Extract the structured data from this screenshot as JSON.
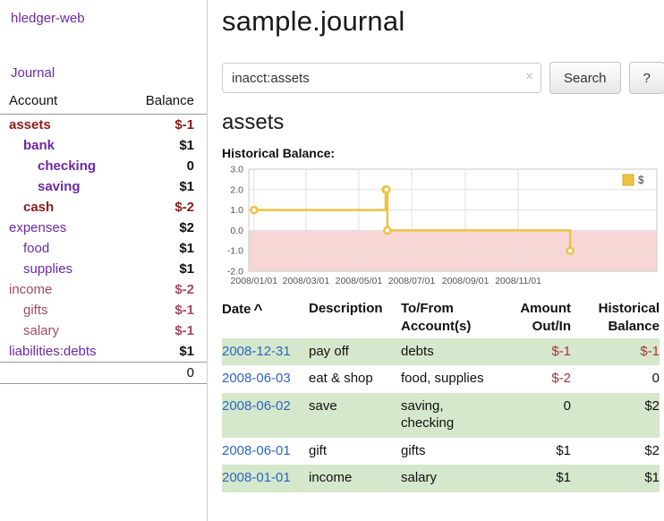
{
  "colors": {
    "link_purple": "#6d28a8",
    "link_blue": "#2b66c2",
    "negative_dark_red": "#8b1b1b",
    "negative_light_red": "#a34a5e",
    "negative_amount_red": "#a8323a",
    "row_stripe_green": "#d5e8cb",
    "chart_line_yellow": "#edc240",
    "chart_negative_fill_pink": "#f8d6d6"
  },
  "app": {
    "title": "hledger-web"
  },
  "sidebar": {
    "journal_link": "Journal",
    "accounts": {
      "col_account": "Account",
      "col_balance": "Balance",
      "rows": [
        {
          "name": "assets",
          "balance": "$-1",
          "depth": 1,
          "negative": true,
          "current": true
        },
        {
          "name": "bank",
          "balance": "$1",
          "depth": 2,
          "negative": false,
          "current": true
        },
        {
          "name": "checking",
          "balance": "0",
          "depth": 3,
          "negative": false,
          "current": true
        },
        {
          "name": "saving",
          "balance": "$1",
          "depth": 3,
          "negative": false,
          "current": true
        },
        {
          "name": "cash",
          "balance": "$-2",
          "depth": 2,
          "negative": true,
          "current": true
        },
        {
          "name": "expenses",
          "balance": "$2",
          "depth": 1,
          "negative": false,
          "current": false
        },
        {
          "name": "food",
          "balance": "$1",
          "depth": 2,
          "negative": false,
          "current": false
        },
        {
          "name": "supplies",
          "balance": "$1",
          "depth": 2,
          "negative": false,
          "current": false
        },
        {
          "name": "income",
          "balance": "$-2",
          "depth": 1,
          "negative": true,
          "current": false
        },
        {
          "name": "gifts",
          "balance": "$-1",
          "depth": 2,
          "negative": true,
          "current": false
        },
        {
          "name": "salary",
          "balance": "$-1",
          "depth": 2,
          "negative": true,
          "current": false
        },
        {
          "name": "liabilities:debts",
          "balance": "$1",
          "depth": 1,
          "negative": false,
          "current": false
        }
      ],
      "total": "0"
    }
  },
  "main": {
    "title": "sample.journal",
    "search": {
      "value": "inacct:assets",
      "clear_icon": "×",
      "button_label": "Search",
      "help_label": "?"
    },
    "account_heading": "assets",
    "chart_heading": "Historical Balance:",
    "register": {
      "sort_indicator": "^",
      "headers": {
        "date": "Date",
        "description": "Description",
        "tofrom": [
          "To/From",
          "Account(s)"
        ],
        "amount": [
          "Amount",
          "Out/In"
        ],
        "balance": [
          "Historical",
          "Balance"
        ]
      },
      "rows": [
        {
          "date": "2008-12-31",
          "description": "pay off",
          "accounts": "debts",
          "amount": "$-1",
          "balance": "$-1"
        },
        {
          "date": "2008-06-03",
          "description": "eat & shop",
          "accounts": "food, supplies",
          "amount": "$-2",
          "balance": "0"
        },
        {
          "date": "2008-06-02",
          "description": "save",
          "accounts": "saving, checking",
          "amount": "0",
          "balance": "$2"
        },
        {
          "date": "2008-06-01",
          "description": "gift",
          "accounts": "gifts",
          "amount": "$1",
          "balance": "$2"
        },
        {
          "date": "2008-01-01",
          "description": "income",
          "accounts": "salary",
          "amount": "$1",
          "balance": "$1"
        }
      ]
    }
  },
  "chart_data": {
    "type": "line",
    "title": "Historical Balance:",
    "step": true,
    "series": [
      {
        "name": "$",
        "points": [
          {
            "x": "2008-01-01",
            "y": 1
          },
          {
            "x": "2008-06-01",
            "y": 2
          },
          {
            "x": "2008-06-02",
            "y": 2
          },
          {
            "x": "2008-06-03",
            "y": 0
          },
          {
            "x": "2008-12-31",
            "y": -1
          }
        ]
      }
    ],
    "x_ticks": [
      "2008/01/01",
      "2008/03/01",
      "2008/05/01",
      "2008/07/01",
      "2008/09/01",
      "2008/11/01"
    ],
    "y_ticks": [
      3,
      2,
      1,
      0,
      -1,
      -2
    ],
    "ylim": [
      -2,
      3
    ],
    "x_domain": [
      "2007-12-26",
      "2009-04-10"
    ],
    "legend_position": "top-right",
    "grid": true,
    "colors": {
      "line": "#edc240",
      "marker_fill": "#ffffff",
      "negative_region": "#f8d6d6"
    }
  }
}
